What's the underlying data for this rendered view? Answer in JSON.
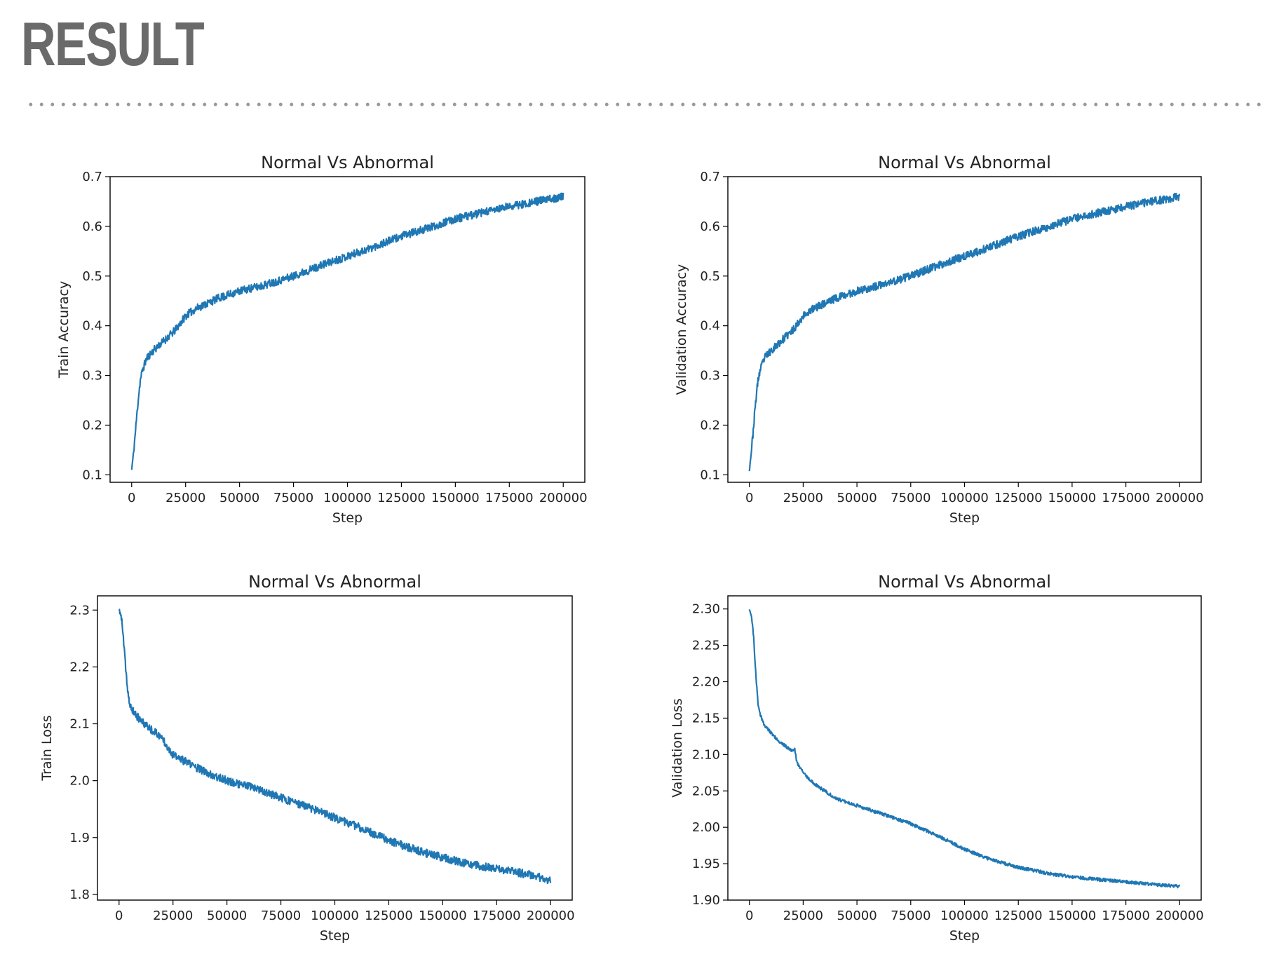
{
  "slide": {
    "title": "RESULT"
  },
  "chart_data": [
    {
      "type": "line",
      "title": "Normal Vs Abnormal",
      "xlabel": "Step",
      "ylabel": "Train Accuracy",
      "xlim": [
        -10000,
        210000
      ],
      "ylim": [
        0.085,
        0.7
      ],
      "xticks": [
        0,
        25000,
        50000,
        75000,
        100000,
        125000,
        150000,
        175000,
        200000
      ],
      "xtick_labels": [
        "0",
        "25000",
        "50000",
        "75000",
        "100000",
        "125000",
        "150000",
        "175000",
        "200000"
      ],
      "yticks": [
        0.1,
        0.2,
        0.3,
        0.4,
        0.5,
        0.6,
        0.7
      ],
      "ytick_labels": [
        "0.1",
        "0.2",
        "0.3",
        "0.4",
        "0.5",
        "0.6",
        "0.7"
      ],
      "grid": false,
      "color": "#1f77b4",
      "noise": 0.008,
      "seed": 11,
      "series": [
        {
          "x": [
            0,
            1000,
            2000,
            3000,
            4000,
            5000,
            7000,
            10000,
            15000,
            20000,
            25000,
            30000,
            40000,
            50000,
            60000,
            75000,
            90000,
            100000,
            110000,
            125000,
            140000,
            150000,
            160000,
            175000,
            190000,
            200000
          ],
          "y": [
            0.11,
            0.15,
            0.2,
            0.25,
            0.29,
            0.31,
            0.335,
            0.35,
            0.37,
            0.39,
            0.42,
            0.435,
            0.455,
            0.47,
            0.48,
            0.5,
            0.525,
            0.54,
            0.555,
            0.58,
            0.6,
            0.615,
            0.625,
            0.64,
            0.652,
            0.66
          ]
        }
      ]
    },
    {
      "type": "line",
      "title": "Normal Vs Abnormal",
      "xlabel": "Step",
      "ylabel": "Validation Accuracy",
      "xlim": [
        -10000,
        210000
      ],
      "ylim": [
        0.085,
        0.7
      ],
      "xticks": [
        0,
        25000,
        50000,
        75000,
        100000,
        125000,
        150000,
        175000,
        200000
      ],
      "xtick_labels": [
        "0",
        "25000",
        "50000",
        "75000",
        "100000",
        "125000",
        "150000",
        "175000",
        "200000"
      ],
      "yticks": [
        0.1,
        0.2,
        0.3,
        0.4,
        0.5,
        0.6,
        0.7
      ],
      "ytick_labels": [
        "0.1",
        "0.2",
        "0.3",
        "0.4",
        "0.5",
        "0.6",
        "0.7"
      ],
      "grid": false,
      "color": "#1f77b4",
      "noise": 0.008,
      "seed": 23,
      "series": [
        {
          "x": [
            0,
            1000,
            2000,
            3000,
            4000,
            5000,
            7000,
            10000,
            15000,
            20000,
            25000,
            30000,
            40000,
            50000,
            60000,
            75000,
            90000,
            100000,
            110000,
            125000,
            140000,
            150000,
            160000,
            175000,
            190000,
            200000
          ],
          "y": [
            0.11,
            0.15,
            0.2,
            0.25,
            0.29,
            0.31,
            0.335,
            0.35,
            0.37,
            0.39,
            0.42,
            0.435,
            0.455,
            0.47,
            0.48,
            0.5,
            0.525,
            0.54,
            0.555,
            0.58,
            0.6,
            0.615,
            0.625,
            0.64,
            0.652,
            0.66
          ]
        }
      ]
    },
    {
      "type": "line",
      "title": "Normal Vs Abnormal",
      "xlabel": "Step",
      "ylabel": "Train Loss",
      "xlim": [
        -10000,
        210000
      ],
      "ylim": [
        1.79,
        2.325
      ],
      "xticks": [
        0,
        25000,
        50000,
        75000,
        100000,
        125000,
        150000,
        175000,
        200000
      ],
      "xtick_labels": [
        "0",
        "25000",
        "50000",
        "75000",
        "100000",
        "125000",
        "150000",
        "175000",
        "200000"
      ],
      "yticks": [
        1.8,
        1.9,
        2.0,
        2.1,
        2.2,
        2.3
      ],
      "ytick_labels": [
        "1.8",
        "1.9",
        "2.0",
        "2.1",
        "2.2",
        "2.3"
      ],
      "grid": false,
      "color": "#1f77b4",
      "noise": 0.007,
      "seed": 37,
      "series": [
        {
          "x": [
            0,
            1000,
            2000,
            3000,
            4000,
            5000,
            7000,
            10000,
            15000,
            20000,
            25000,
            30000,
            40000,
            50000,
            60000,
            75000,
            90000,
            100000,
            110000,
            125000,
            140000,
            150000,
            160000,
            175000,
            190000,
            200000
          ],
          "y": [
            2.3,
            2.29,
            2.25,
            2.2,
            2.16,
            2.13,
            2.12,
            2.105,
            2.09,
            2.075,
            2.045,
            2.035,
            2.015,
            2.0,
            1.99,
            1.97,
            1.95,
            1.935,
            1.92,
            1.895,
            1.875,
            1.865,
            1.855,
            1.845,
            1.835,
            1.825
          ]
        }
      ]
    },
    {
      "type": "line",
      "title": "Normal Vs Abnormal",
      "xlabel": "Step",
      "ylabel": "Validation Loss",
      "xlim": [
        -10000,
        210000
      ],
      "ylim": [
        1.9,
        2.318
      ],
      "xticks": [
        0,
        25000,
        50000,
        75000,
        100000,
        125000,
        150000,
        175000,
        200000
      ],
      "xtick_labels": [
        "0",
        "25000",
        "50000",
        "75000",
        "100000",
        "125000",
        "150000",
        "175000",
        "200000"
      ],
      "yticks": [
        1.9,
        1.95,
        2.0,
        2.05,
        2.1,
        2.15,
        2.2,
        2.25,
        2.3
      ],
      "ytick_labels": [
        "1.90",
        "1.95",
        "2.00",
        "2.05",
        "2.10",
        "2.15",
        "2.20",
        "2.25",
        "2.30"
      ],
      "grid": false,
      "color": "#1f77b4",
      "noise": 0.0022,
      "seed": 51,
      "series": [
        {
          "x": [
            0,
            1000,
            2000,
            3000,
            4000,
            5000,
            7000,
            10000,
            15000,
            20000,
            21000,
            22000,
            25000,
            30000,
            40000,
            50000,
            60000,
            75000,
            90000,
            100000,
            110000,
            125000,
            140000,
            150000,
            160000,
            175000,
            190000,
            200000
          ],
          "y": [
            2.3,
            2.29,
            2.26,
            2.21,
            2.17,
            2.155,
            2.14,
            2.13,
            2.115,
            2.105,
            2.108,
            2.09,
            2.075,
            2.06,
            2.04,
            2.03,
            2.02,
            2.005,
            1.985,
            1.97,
            1.958,
            1.945,
            1.936,
            1.932,
            1.929,
            1.925,
            1.921,
            1.919
          ]
        }
      ]
    }
  ]
}
